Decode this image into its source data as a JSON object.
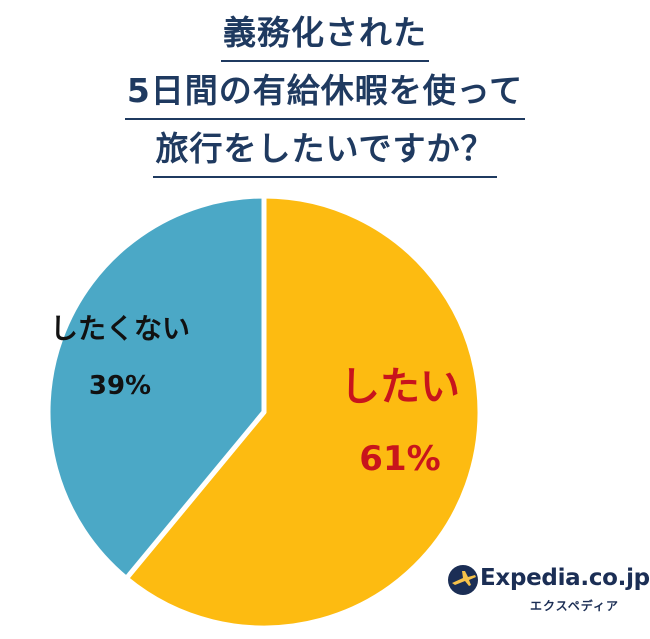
{
  "chart_data": {
    "type": "pie",
    "title_lines": [
      "義務化された",
      "5日間の有給休暇を使って",
      "旅行をしたいですか？"
    ],
    "slices": [
      {
        "label": "したい",
        "value": 61,
        "value_label": "61%",
        "color": "#FDBB11",
        "label_color": "#C8141C"
      },
      {
        "label": "したくない",
        "value": 39,
        "value_label": "39%",
        "color": "#4BA8C6",
        "label_color": "#111111"
      }
    ]
  },
  "brand": {
    "name": "Expedia.co.jp",
    "subtitle": "エクスペディア",
    "icon": "airplane-globe-icon",
    "color": "#1B2E55"
  }
}
